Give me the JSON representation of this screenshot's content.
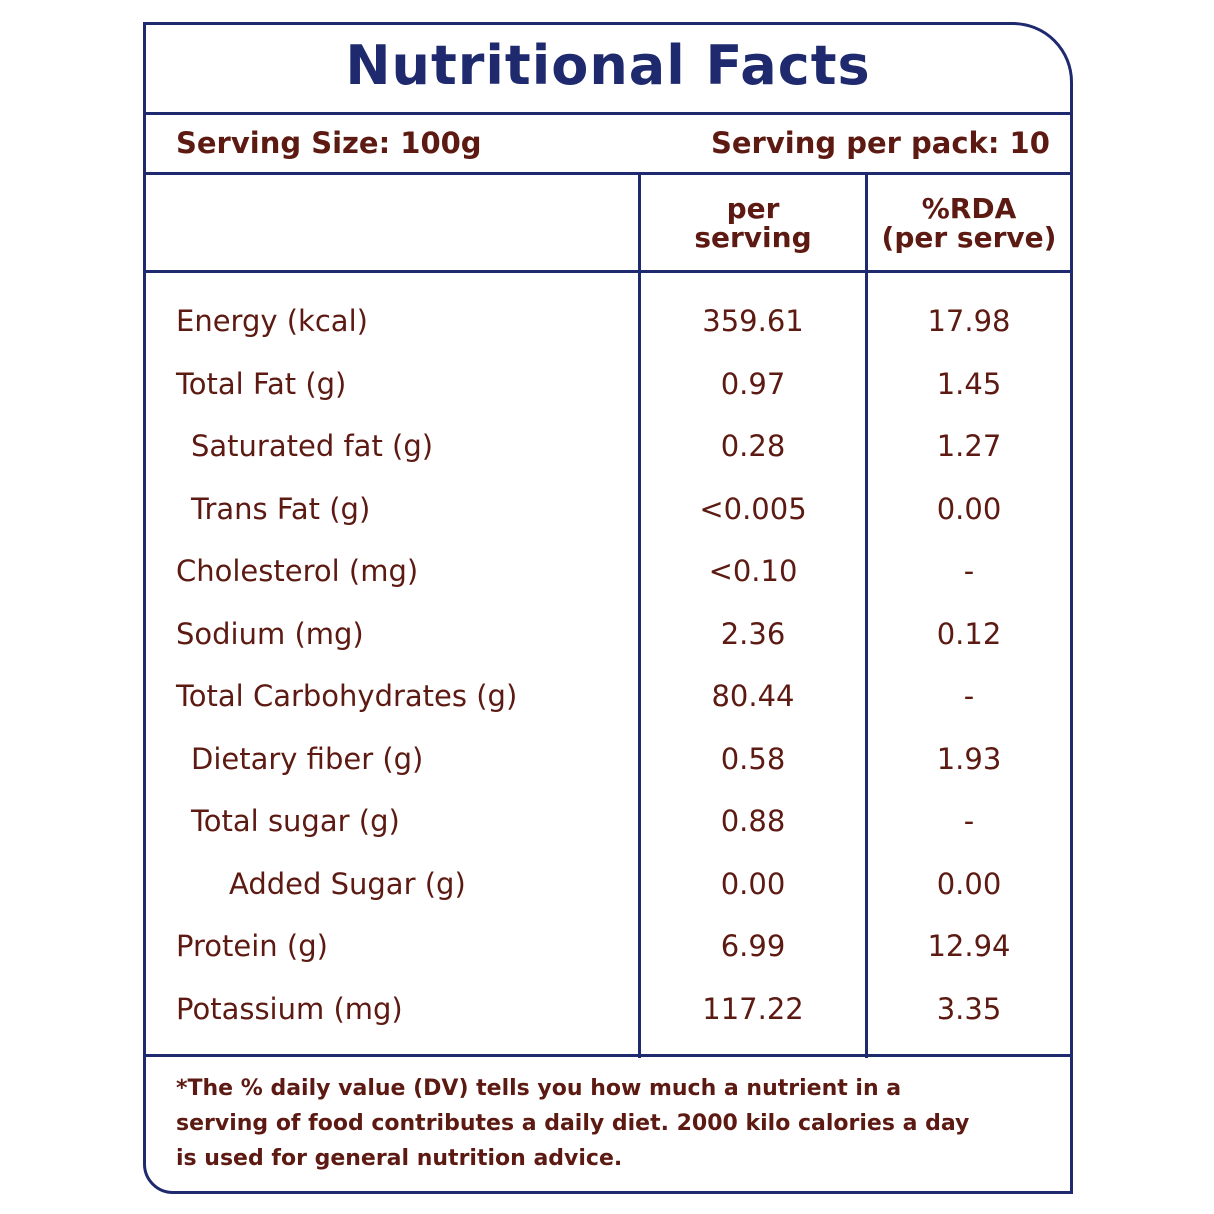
{
  "title": "Nutritional Facts",
  "serving_size": "Serving Size: 100g",
  "serving_per_pack": "Serving per pack: 10",
  "columns": {
    "per_serving_1": "per",
    "per_serving_2": "serving",
    "rda_1": "%RDA",
    "rda_2": "(per serve)"
  },
  "rows": [
    {
      "name": "Energy (kcal)",
      "indent": 0,
      "value": "359.61",
      "rda": "17.98"
    },
    {
      "name": "Total Fat (g)",
      "indent": 0,
      "value": "0.97",
      "rda": "1.45"
    },
    {
      "name": "Saturated fat (g)",
      "indent": 1,
      "value": "0.28",
      "rda": "1.27"
    },
    {
      "name": "Trans Fat (g)",
      "indent": 1,
      "value": "<0.005",
      "rda": "0.00"
    },
    {
      "name": "Cholesterol (mg)",
      "indent": 0,
      "value": "<0.10",
      "rda": "-"
    },
    {
      "name": "Sodium (mg)",
      "indent": 0,
      "value": "2.36",
      "rda": "0.12"
    },
    {
      "name": "Total Carbohydrates  (g)",
      "indent": 0,
      "value": "80.44",
      "rda": "-"
    },
    {
      "name": "Dietary fiber (g)",
      "indent": 1,
      "value": "0.58",
      "rda": "1.93"
    },
    {
      "name": "Total sugar (g)",
      "indent": 1,
      "value": "0.88",
      "rda": "-"
    },
    {
      "name": "Added Sugar (g)",
      "indent": 2,
      "value": "0.00",
      "rda": "0.00"
    },
    {
      "name": "Protein (g)",
      "indent": 0,
      "value": "6.99",
      "rda": "12.94"
    },
    {
      "name": "Potassium (mg)",
      "indent": 0,
      "value": "117.22",
      "rda": "3.35"
    }
  ],
  "footnote": "*The % daily value (DV) tells you how much a nutrient in a serving of food contributes a daily diet. 2000 kilo calories a day is used for general nutrition advice.",
  "colors": {
    "border": "#1f2a6e",
    "text": "#5c1a12"
  }
}
